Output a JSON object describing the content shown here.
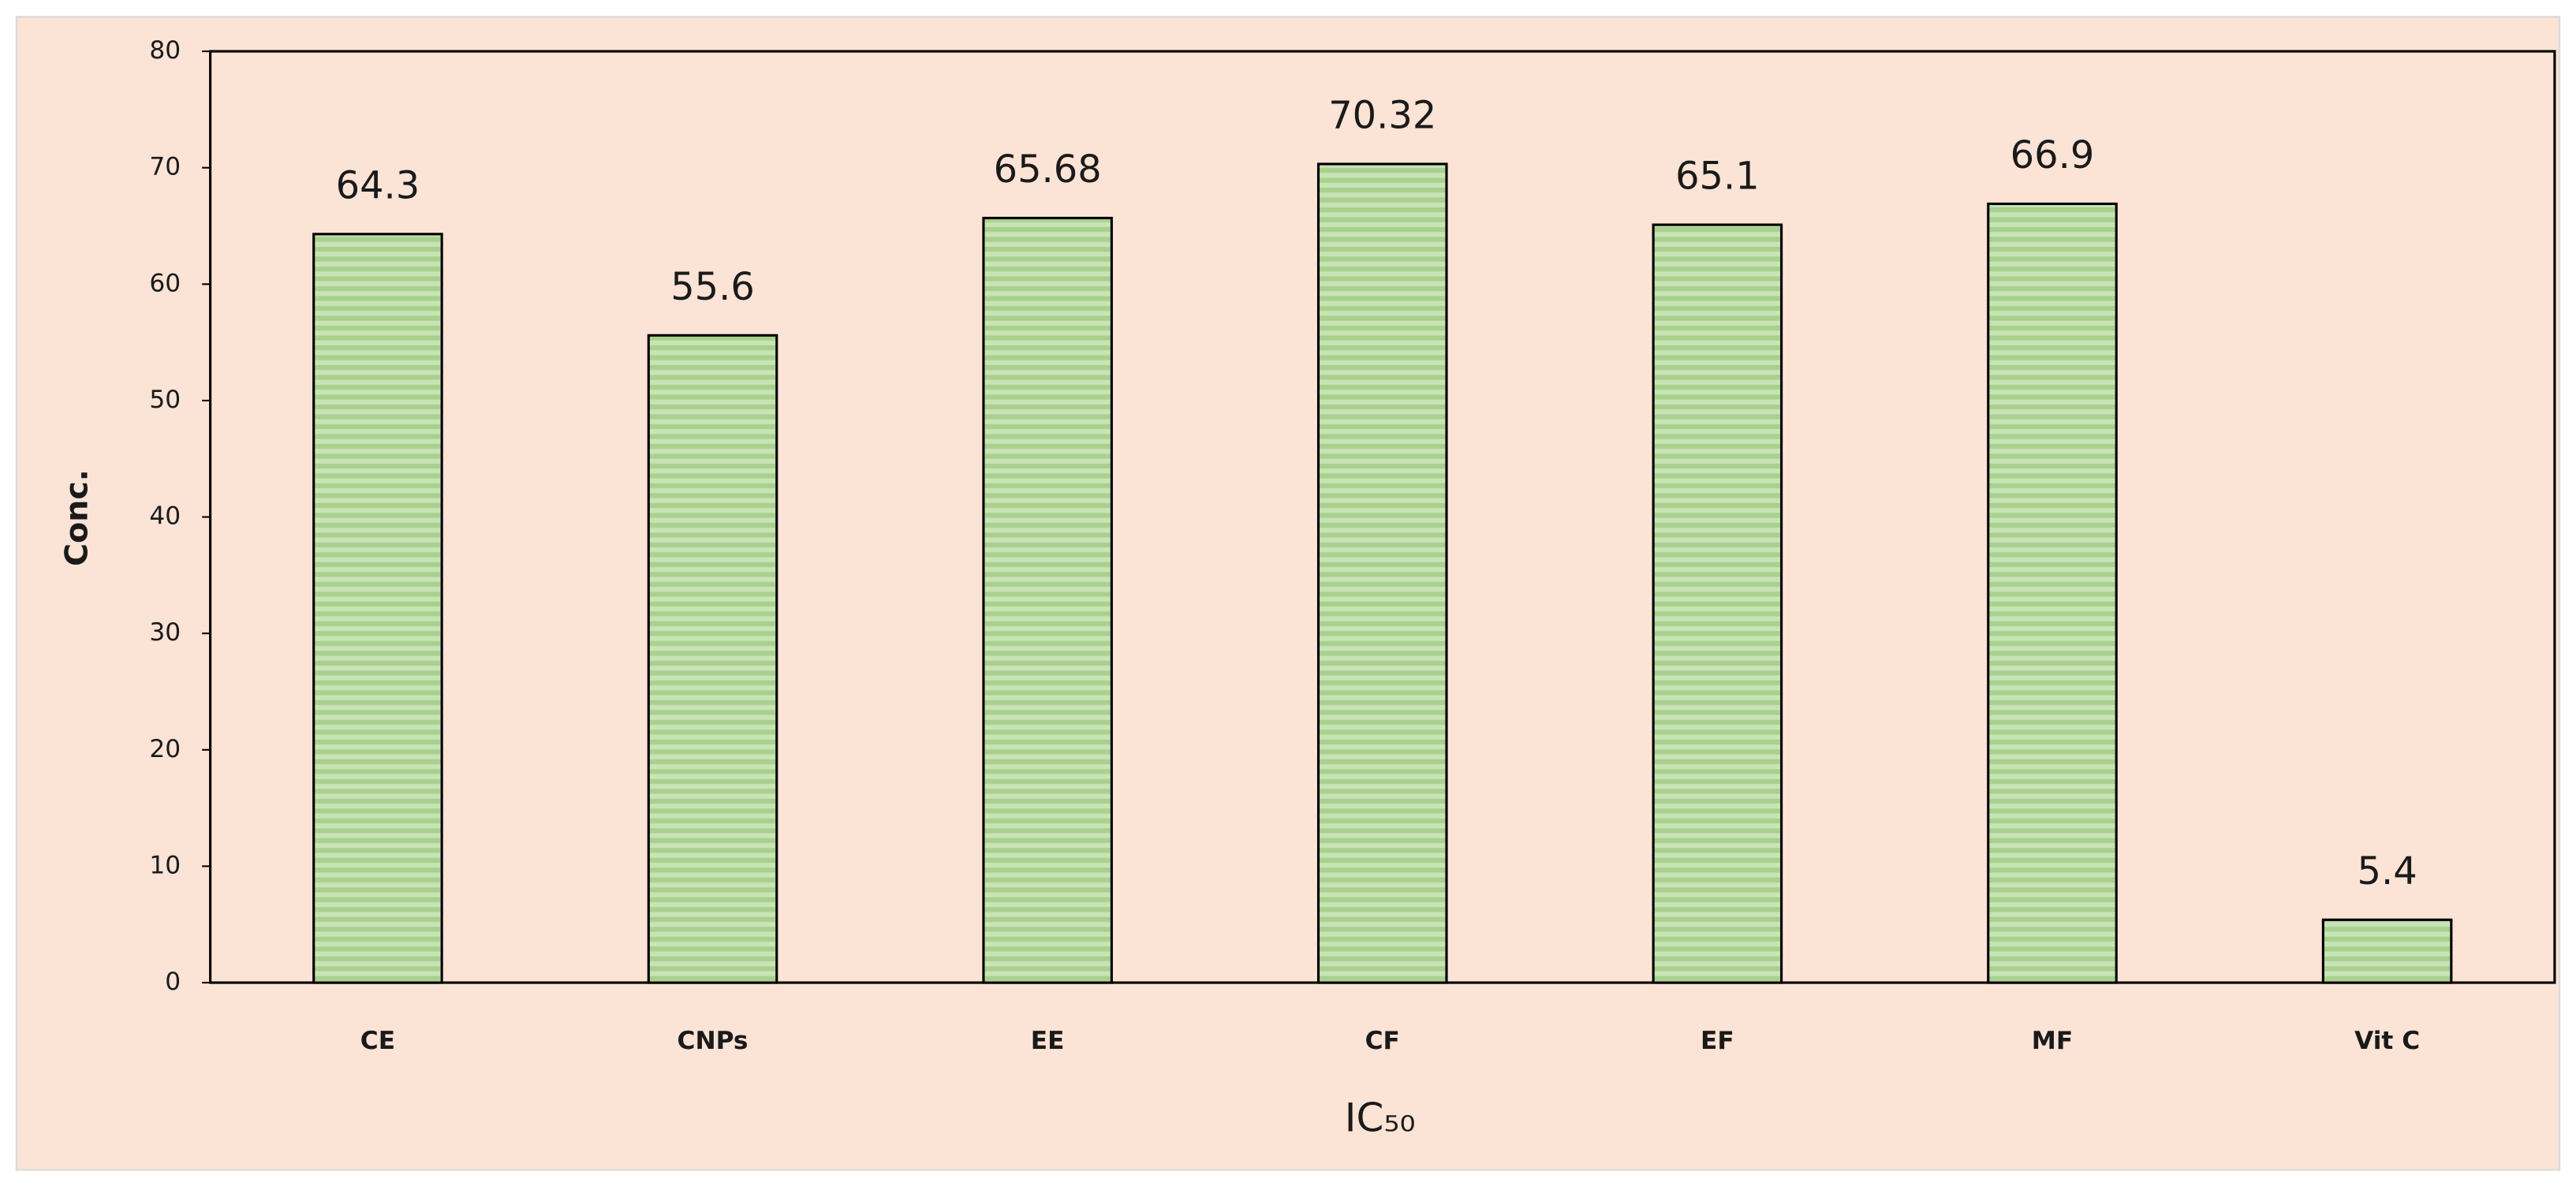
{
  "chart_data": {
    "type": "bar",
    "x_label": "IC₅₀",
    "y_label": "Conc.",
    "categories": [
      "CE",
      "CNPs",
      "EE",
      "CF",
      "EF",
      "MF",
      "Vit C"
    ],
    "values": [
      64.3,
      55.6,
      65.68,
      70.32,
      65.1,
      66.9,
      5.4
    ],
    "color": "#a9d18e",
    "ylim": [
      0,
      80
    ],
    "yticks": [
      0,
      10,
      20,
      30,
      40,
      50,
      60,
      70,
      80
    ],
    "grid": false
  }
}
